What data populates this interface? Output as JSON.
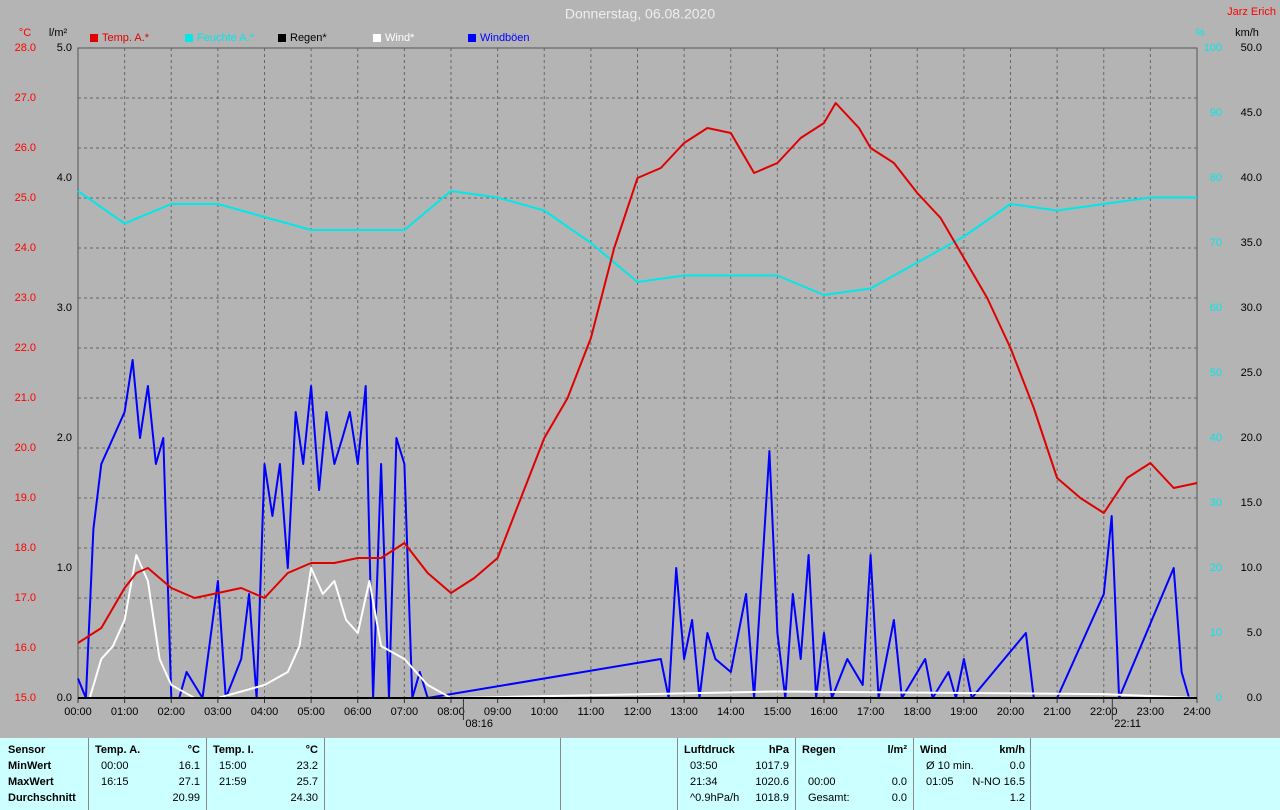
{
  "chart_data": {
    "type": "line",
    "title": "Donnerstag, 06.08.2020",
    "author": "Jarz Erich",
    "grid": true,
    "xlim": [
      0,
      24
    ],
    "xticks": [
      {
        "value": 0,
        "label": "00:00"
      },
      {
        "value": 1,
        "label": "01:00"
      },
      {
        "value": 2,
        "label": "02:00"
      },
      {
        "value": 3,
        "label": "03:00"
      },
      {
        "value": 4,
        "label": "04:00"
      },
      {
        "value": 5,
        "label": "05:00"
      },
      {
        "value": 6,
        "label": "06:00"
      },
      {
        "value": 7,
        "label": "07:00"
      },
      {
        "value": 8,
        "label": "08:00"
      },
      {
        "value": 9,
        "label": "09:00"
      },
      {
        "value": 10,
        "label": "10:00"
      },
      {
        "value": 11,
        "label": "11:00"
      },
      {
        "value": 12,
        "label": "12:00"
      },
      {
        "value": 13,
        "label": "13:00"
      },
      {
        "value": 14,
        "label": "14:00"
      },
      {
        "value": 15,
        "label": "15:00"
      },
      {
        "value": 16,
        "label": "16:00"
      },
      {
        "value": 17,
        "label": "17:00"
      },
      {
        "value": 18,
        "label": "18:00"
      },
      {
        "value": 19,
        "label": "19:00"
      },
      {
        "value": 20,
        "label": "20:00"
      },
      {
        "value": 21,
        "label": "21:00"
      },
      {
        "value": 22,
        "label": "22:00"
      },
      {
        "value": 23,
        "label": "23:00"
      },
      {
        "value": 24,
        "label": "24:00"
      }
    ],
    "annotations": [
      {
        "x": 8.2667,
        "label": "08:16"
      },
      {
        "x": 22.1833,
        "label": "22:11"
      }
    ],
    "axes": [
      {
        "unit": "°C",
        "color": "#ff0000",
        "lim": [
          15,
          28
        ],
        "ticks": [
          {
            "value": 15,
            "label": "15.0"
          },
          {
            "value": 16,
            "label": "16.0"
          },
          {
            "value": 17,
            "label": "17.0"
          },
          {
            "value": 18,
            "label": "18.0"
          },
          {
            "value": 19,
            "label": "19.0"
          },
          {
            "value": 20,
            "label": "20.0"
          },
          {
            "value": 21,
            "label": "21.0"
          },
          {
            "value": 22,
            "label": "22.0"
          },
          {
            "value": 23,
            "label": "23.0"
          },
          {
            "value": 24,
            "label": "24.0"
          },
          {
            "value": 25,
            "label": "25.0"
          },
          {
            "value": 26,
            "label": "26.0"
          },
          {
            "value": 27,
            "label": "27.0"
          },
          {
            "value": 28,
            "label": "28.0"
          }
        ]
      },
      {
        "unit": "l/m²",
        "color": "#000000",
        "lim": [
          0,
          5
        ],
        "ticks": [
          {
            "value": 0,
            "label": "0.0"
          },
          {
            "value": 1,
            "label": "1.0"
          },
          {
            "value": 2,
            "label": "2.0"
          },
          {
            "value": 3,
            "label": "3.0"
          },
          {
            "value": 4,
            "label": "4.0"
          },
          {
            "value": 5,
            "label": "5.0"
          }
        ]
      },
      {
        "unit": "%",
        "color": "#00e8e8",
        "lim": [
          0,
          100
        ],
        "ticks": [
          0,
          10,
          20,
          30,
          40,
          50,
          60,
          70,
          80,
          90,
          100
        ]
      },
      {
        "unit": "km/h",
        "color": "#000000",
        "lim": [
          0,
          50
        ],
        "ticks": [
          {
            "value": 0,
            "label": "0.0"
          },
          {
            "value": 5,
            "label": "5.0"
          },
          {
            "value": 10,
            "label": "10.0"
          },
          {
            "value": 15,
            "label": "15.0"
          },
          {
            "value": 20,
            "label": "20.0"
          },
          {
            "value": 25,
            "label": "25.0"
          },
          {
            "value": 30,
            "label": "30.0"
          },
          {
            "value": 35,
            "label": "35.0"
          },
          {
            "value": 40,
            "label": "40.0"
          },
          {
            "value": 45,
            "label": "45.0"
          },
          {
            "value": 50,
            "label": "50.0"
          }
        ]
      }
    ],
    "series": [
      {
        "name": "Temp. A.*",
        "color": "#e00000",
        "axis": 0,
        "x": [
          0,
          0.5,
          1,
          1.25,
          1.5,
          2,
          2.5,
          3,
          3.5,
          4,
          4.5,
          5,
          5.5,
          6,
          6.5,
          7,
          7.5,
          8,
          8.5,
          9,
          9.5,
          10,
          10.5,
          11,
          11.5,
          12,
          12.5,
          13,
          13.5,
          14,
          14.5,
          15,
          15.5,
          16,
          16.25,
          16.75,
          17,
          17.5,
          18,
          18.5,
          19,
          19.5,
          20,
          20.5,
          21,
          21.5,
          22,
          22.5,
          23,
          23.5,
          24
        ],
        "values": [
          16.1,
          16.4,
          17.2,
          17.5,
          17.6,
          17.2,
          17.0,
          17.1,
          17.2,
          17.0,
          17.5,
          17.7,
          17.7,
          17.8,
          17.8,
          18.1,
          17.5,
          17.1,
          17.4,
          17.8,
          19.0,
          20.2,
          21.0,
          22.2,
          24.0,
          25.4,
          25.6,
          26.1,
          26.4,
          26.3,
          25.5,
          25.7,
          26.2,
          26.5,
          26.9,
          26.4,
          26.0,
          25.7,
          25.1,
          24.6,
          23.8,
          23.0,
          22.0,
          20.8,
          19.4,
          19.0,
          18.7,
          19.4,
          19.7,
          19.2,
          19.3
        ]
      },
      {
        "name": "Feuchte A.*",
        "color": "#00e8e8",
        "axis": 2,
        "x": [
          0,
          1,
          2,
          3,
          4,
          5,
          6,
          7,
          8,
          9,
          10,
          11,
          12,
          13,
          14,
          15,
          16,
          17,
          18,
          19,
          20,
          21,
          22,
          23,
          24
        ],
        "values": [
          78,
          73,
          76,
          76,
          74,
          72,
          72,
          72,
          78,
          77,
          75,
          70,
          64,
          65,
          65,
          65,
          62,
          63,
          67,
          71,
          76,
          75,
          76,
          77,
          77
        ]
      },
      {
        "name": "Regen*",
        "color": "#000000",
        "axis": 1,
        "x": [
          0,
          24
        ],
        "values": [
          0,
          0
        ]
      },
      {
        "name": "Wind*",
        "color": "#ffffff",
        "axis": 3,
        "x": [
          0,
          0.25,
          0.5,
          0.75,
          1,
          1.25,
          1.5,
          1.75,
          2,
          2.5,
          3,
          4,
          4.5,
          4.75,
          5,
          5.25,
          5.5,
          5.75,
          6,
          6.25,
          6.5,
          7,
          7.5,
          8,
          15,
          22,
          24
        ],
        "values": [
          0,
          0,
          3,
          4,
          6,
          11,
          9,
          3,
          1,
          0,
          0,
          1,
          2,
          4,
          10,
          8,
          9,
          6,
          5,
          9,
          4,
          3,
          1,
          0,
          0.5,
          0.3,
          0
        ]
      },
      {
        "name": "Windböen",
        "color": "#0000ff",
        "axis": 3,
        "x": [
          0,
          0.17,
          0.33,
          0.5,
          0.75,
          1,
          1.17,
          1.33,
          1.5,
          1.67,
          1.83,
          2,
          2.17,
          2.33,
          2.67,
          3,
          3.17,
          3.5,
          3.67,
          3.83,
          4,
          4.17,
          4.33,
          4.5,
          4.67,
          4.83,
          5,
          5.17,
          5.33,
          5.5,
          5.67,
          5.83,
          6,
          6.17,
          6.33,
          6.5,
          6.67,
          6.83,
          7,
          7.17,
          7.33,
          7.5,
          12.5,
          12.67,
          12.83,
          13,
          13.17,
          13.33,
          13.5,
          13.67,
          14,
          14.33,
          14.5,
          14.83,
          15,
          15.17,
          15.33,
          15.5,
          15.67,
          15.83,
          16,
          16.17,
          16.5,
          16.83,
          17,
          17.17,
          17.5,
          17.67,
          18.17,
          18.33,
          18.67,
          18.83,
          19,
          19.17,
          20.33,
          20.5,
          21,
          22,
          22.17,
          22.33,
          23.5,
          23.67,
          23.83,
          24
        ],
        "values": [
          1.5,
          0,
          13,
          18,
          20,
          22,
          26,
          20,
          24,
          18,
          20,
          0,
          0,
          2,
          0,
          9,
          0,
          3,
          8,
          0,
          18,
          14,
          18,
          10,
          22,
          18,
          24,
          16,
          22,
          18,
          20,
          22,
          18,
          24,
          0,
          18,
          0,
          20,
          18,
          0,
          2,
          0,
          3,
          0,
          10,
          3,
          6,
          0,
          5,
          3,
          2,
          8,
          0,
          19,
          5,
          0,
          8,
          3,
          11,
          0,
          5,
          0,
          3,
          1,
          11,
          0,
          6,
          0,
          3,
          0,
          2,
          0,
          3,
          0,
          5,
          0,
          0,
          8,
          14,
          0,
          10,
          2,
          0,
          0
        ]
      }
    ]
  },
  "stats": {
    "row_labels": [
      "Sensor",
      "MinWert",
      "MaxWert",
      "Durchschnitt"
    ],
    "blocks": [
      {
        "title": "Temp. A.",
        "unit": "°C",
        "rows": [
          [
            "00:00",
            "16.1"
          ],
          [
            "16:15",
            "27.1"
          ],
          [
            null,
            "20.99"
          ]
        ]
      },
      {
        "title": "Temp. I.",
        "unit": "°C",
        "rows": [
          [
            "15:00",
            "23.2"
          ],
          [
            "21:59",
            "25.7"
          ],
          [
            null,
            "24.30"
          ]
        ]
      },
      {
        "title": "Luftdruck",
        "unit": "hPa",
        "rows": [
          [
            "03:50",
            "1017.9"
          ],
          [
            "21:34",
            "1020.6"
          ],
          [
            "^0.9hPa/h",
            "1018.9"
          ]
        ]
      },
      {
        "title": "Regen",
        "unit": "l/m²",
        "rows": [
          null,
          [
            "00:00",
            "0.0"
          ],
          [
            "Gesamt:",
            "0.0"
          ]
        ]
      },
      {
        "title": "Wind",
        "unit": "km/h",
        "rows": [
          [
            "Ø 10 min.",
            "0.0"
          ],
          [
            "01:05",
            "N-NO 16.5"
          ],
          [
            null,
            "1.2"
          ]
        ]
      }
    ]
  }
}
